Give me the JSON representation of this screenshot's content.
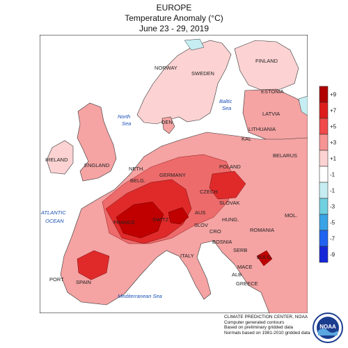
{
  "title": {
    "line1": "EUROPE",
    "line2": "Temperature Anomaly (°C)",
    "line3": "June 23 - 29, 2019"
  },
  "map_labels": [
    {
      "key": "norway",
      "text": "NORWAY",
      "kind": "country"
    },
    {
      "key": "sweden",
      "text": "SWEDEN",
      "kind": "country"
    },
    {
      "key": "finland",
      "text": "FINLAND",
      "kind": "country"
    },
    {
      "key": "estonia",
      "text": "ESTONIA",
      "kind": "country"
    },
    {
      "key": "latvia",
      "text": "LATVIA",
      "kind": "country"
    },
    {
      "key": "lithuania",
      "text": "LITHUANIA",
      "kind": "country"
    },
    {
      "key": "kal",
      "text": "KAL",
      "kind": "country"
    },
    {
      "key": "belarus",
      "text": "BELARUS",
      "kind": "country"
    },
    {
      "key": "den",
      "text": "DEN",
      "kind": "country"
    },
    {
      "key": "ireland",
      "text": "IRELAND",
      "kind": "country"
    },
    {
      "key": "england",
      "text": "ENGLAND",
      "kind": "country"
    },
    {
      "key": "neth",
      "text": "NETH.",
      "kind": "country"
    },
    {
      "key": "belg",
      "text": "BELG.",
      "kind": "country"
    },
    {
      "key": "germany",
      "text": "GERMANY",
      "kind": "country"
    },
    {
      "key": "poland",
      "text": "POLAND",
      "kind": "country"
    },
    {
      "key": "czech",
      "text": "CZECH",
      "kind": "country"
    },
    {
      "key": "slovak",
      "text": "SLOVAK",
      "kind": "country"
    },
    {
      "key": "france",
      "text": "FRANCE",
      "kind": "country"
    },
    {
      "key": "switz",
      "text": "SWITZ",
      "kind": "country"
    },
    {
      "key": "aus",
      "text": "AUS",
      "kind": "country"
    },
    {
      "key": "slov",
      "text": "SLOV",
      "kind": "country"
    },
    {
      "key": "hung",
      "text": "HUNG.",
      "kind": "country"
    },
    {
      "key": "cro",
      "text": "CRO",
      "kind": "country"
    },
    {
      "key": "romania",
      "text": "ROMANIA",
      "kind": "country"
    },
    {
      "key": "mol",
      "text": "MOL.",
      "kind": "country"
    },
    {
      "key": "bosnia",
      "text": "BOSNIA",
      "kind": "country"
    },
    {
      "key": "serb",
      "text": "SERB",
      "kind": "country"
    },
    {
      "key": "bulg",
      "text": "BULG",
      "kind": "country"
    },
    {
      "key": "mace",
      "text": "MACE",
      "kind": "country"
    },
    {
      "key": "alb",
      "text": "ALB",
      "kind": "country"
    },
    {
      "key": "greece",
      "text": "GREECE",
      "kind": "country"
    },
    {
      "key": "italy",
      "text": "ITALY",
      "kind": "country"
    },
    {
      "key": "spain",
      "text": "SPAIN",
      "kind": "country"
    },
    {
      "key": "port",
      "text": "PORT",
      "kind": "country"
    },
    {
      "key": "north",
      "text": "North",
      "kind": "sea"
    },
    {
      "key": "north2",
      "text": "Sea",
      "kind": "sea"
    },
    {
      "key": "baltic",
      "text": "Baltic",
      "kind": "sea"
    },
    {
      "key": "baltic2",
      "text": "Sea",
      "kind": "sea"
    },
    {
      "key": "atlantic",
      "text": "ATLANTIC",
      "kind": "sea"
    },
    {
      "key": "atlantic2",
      "text": "OCEAN",
      "kind": "sea"
    },
    {
      "key": "med",
      "text": "Mediterranean Sea",
      "kind": "sea"
    }
  ],
  "legend": {
    "items": [
      {
        "label": "+9",
        "color": "#b00000"
      },
      {
        "label": "+7",
        "color": "#dd1c1c"
      },
      {
        "label": "+5",
        "color": "#f04a4a"
      },
      {
        "label": "+3",
        "color": "#f79494"
      },
      {
        "label": "+1",
        "color": "#fcd2d2"
      },
      {
        "label": "-1",
        "color": "#ffffff"
      },
      {
        "label": "-1",
        "color": "#c6eef2"
      },
      {
        "label": "-3",
        "color": "#6fd0e0"
      },
      {
        "label": "-5",
        "color": "#39a3e6"
      },
      {
        "label": "-7",
        "color": "#1f63f0"
      },
      {
        "label": "-9",
        "color": "#1528d8"
      }
    ]
  },
  "footer": {
    "line1": "CLIMATE PREDICTION CENTER, NOAA",
    "line2": "Computer generated contours",
    "line3": "Based on preliminary gridded data",
    "line4": "Normals based on 1981-2010 gridded data"
  },
  "logo": {
    "text": "NOAA"
  },
  "colors": {
    "ocean": "#ffffff",
    "land_light": "#fcd2d2",
    "land_mid": "#f5a3a3",
    "land_warm": "#ee6b6b",
    "land_hot": "#e02a2a",
    "land_hottest": "#c00000",
    "cool": "#c6eef2"
  }
}
